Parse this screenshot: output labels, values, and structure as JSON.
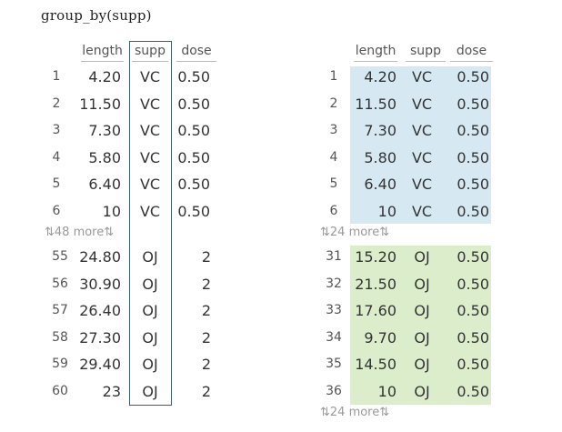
{
  "code": "group_by(supp)",
  "columns": [
    "length",
    "supp",
    "dose"
  ],
  "colors": {
    "group_vc": "#d6e9f2",
    "group_oj": "#dcedcb",
    "highlight_border": "#3a5f6e"
  },
  "left": {
    "top_rows": [
      {
        "i": "1",
        "length": "4.20",
        "supp": "VC",
        "dose": "0.50"
      },
      {
        "i": "2",
        "length": "11.50",
        "supp": "VC",
        "dose": "0.50"
      },
      {
        "i": "3",
        "length": "7.30",
        "supp": "VC",
        "dose": "0.50"
      },
      {
        "i": "4",
        "length": "5.80",
        "supp": "VC",
        "dose": "0.50"
      },
      {
        "i": "5",
        "length": "6.40",
        "supp": "VC",
        "dose": "0.50"
      },
      {
        "i": "6",
        "length": "10",
        "supp": "VC",
        "dose": "0.50"
      }
    ],
    "more_label": "⇅48 more⇅",
    "bottom_rows": [
      {
        "i": "55",
        "length": "24.80",
        "supp": "OJ",
        "dose": "2"
      },
      {
        "i": "56",
        "length": "30.90",
        "supp": "OJ",
        "dose": "2"
      },
      {
        "i": "57",
        "length": "26.40",
        "supp": "OJ",
        "dose": "2"
      },
      {
        "i": "58",
        "length": "27.30",
        "supp": "OJ",
        "dose": "2"
      },
      {
        "i": "59",
        "length": "29.40",
        "supp": "OJ",
        "dose": "2"
      },
      {
        "i": "60",
        "length": "23",
        "supp": "OJ",
        "dose": "2"
      }
    ]
  },
  "right": {
    "top_rows": [
      {
        "i": "1",
        "length": "4.20",
        "supp": "VC",
        "dose": "0.50"
      },
      {
        "i": "2",
        "length": "11.50",
        "supp": "VC",
        "dose": "0.50"
      },
      {
        "i": "3",
        "length": "7.30",
        "supp": "VC",
        "dose": "0.50"
      },
      {
        "i": "4",
        "length": "5.80",
        "supp": "VC",
        "dose": "0.50"
      },
      {
        "i": "5",
        "length": "6.40",
        "supp": "VC",
        "dose": "0.50"
      },
      {
        "i": "6",
        "length": "10",
        "supp": "VC",
        "dose": "0.50"
      }
    ],
    "more_label_1": "⇅24 more⇅",
    "bottom_rows": [
      {
        "i": "31",
        "length": "15.20",
        "supp": "OJ",
        "dose": "0.50"
      },
      {
        "i": "32",
        "length": "21.50",
        "supp": "OJ",
        "dose": "0.50"
      },
      {
        "i": "33",
        "length": "17.60",
        "supp": "OJ",
        "dose": "0.50"
      },
      {
        "i": "34",
        "length": "9.70",
        "supp": "OJ",
        "dose": "0.50"
      },
      {
        "i": "35",
        "length": "14.50",
        "supp": "OJ",
        "dose": "0.50"
      },
      {
        "i": "36",
        "length": "10",
        "supp": "OJ",
        "dose": "0.50"
      }
    ],
    "more_label_2": "⇅24 more⇅"
  }
}
